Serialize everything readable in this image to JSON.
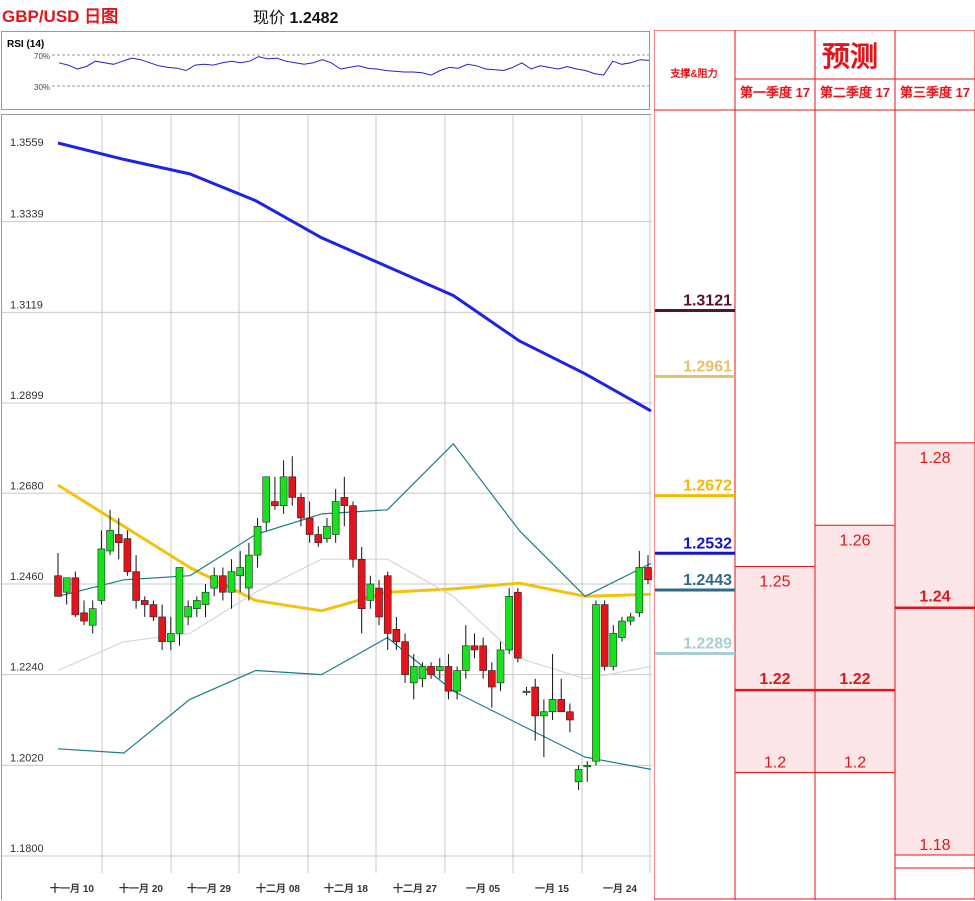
{
  "header": {
    "title": "GBP/USD 日图",
    "price_label": "现价",
    "price_value": "1.2482"
  },
  "rsi": {
    "label": "RSI (14)",
    "levels": [
      "70%",
      "30%"
    ],
    "upper": 70,
    "lower": 30,
    "values": [
      60,
      57,
      52,
      55,
      62,
      60,
      58,
      62,
      66,
      64,
      60,
      56,
      54,
      53,
      50,
      57,
      58,
      57,
      60,
      62,
      60,
      62,
      68,
      65,
      66,
      62,
      60,
      58,
      60,
      64,
      60,
      52,
      54,
      56,
      53,
      52,
      50,
      49,
      48,
      48,
      47,
      44,
      50,
      54,
      53,
      58,
      56,
      52,
      51,
      50,
      54,
      60,
      52,
      56,
      54,
      52,
      55,
      52,
      50,
      46,
      44,
      62,
      58,
      60,
      64,
      63
    ]
  },
  "chart_data": {
    "type": "candlestick",
    "title": "GBP/USD 日图",
    "current_price": 1.2482,
    "ylim": [
      1.18,
      1.3559
    ],
    "y_ticks": [
      "1.3559",
      "1.3339",
      "1.3119",
      "1.2899",
      "1.2680",
      "1.2460",
      "1.2240",
      "1.2020",
      "1.1800"
    ],
    "x_ticks": [
      "十一月 10",
      "十一月 20",
      "十一月 29",
      "十二月 08",
      "十二月 18",
      "十二月 27",
      "一月 05",
      "一月 15",
      "一月 24"
    ],
    "candles": [
      [
        1.248,
        1.2535,
        1.243,
        1.243
      ],
      [
        1.244,
        1.2475,
        1.241,
        1.2475
      ],
      [
        1.2475,
        1.249,
        1.238,
        1.2385
      ],
      [
        1.239,
        1.242,
        1.236,
        1.237
      ],
      [
        1.236,
        1.242,
        1.234,
        1.24
      ],
      [
        1.242,
        1.259,
        1.241,
        1.2545
      ],
      [
        1.254,
        1.264,
        1.253,
        1.259
      ],
      [
        1.258,
        1.262,
        1.252,
        1.256
      ],
      [
        1.257,
        1.259,
        1.248,
        1.249
      ],
      [
        1.249,
        1.253,
        1.24,
        1.242
      ],
      [
        1.242,
        1.243,
        1.238,
        1.241
      ],
      [
        1.241,
        1.242,
        1.237,
        1.238
      ],
      [
        1.238,
        1.241,
        1.23,
        1.232
      ],
      [
        1.232,
        1.238,
        1.23,
        1.234
      ],
      [
        1.234,
        1.25,
        1.231,
        1.25
      ],
      [
        1.238,
        1.242,
        1.236,
        1.2405
      ],
      [
        1.24,
        1.243,
        1.238,
        1.242
      ],
      [
        1.241,
        1.246,
        1.238,
        1.244
      ],
      [
        1.245,
        1.25,
        1.243,
        1.248
      ],
      [
        1.248,
        1.25,
        1.242,
        1.244
      ],
      [
        1.244,
        1.252,
        1.24,
        1.249
      ],
      [
        1.248,
        1.254,
        1.244,
        1.25
      ],
      [
        1.245,
        1.256,
        1.242,
        1.253
      ],
      [
        1.253,
        1.262,
        1.25,
        1.26
      ],
      [
        1.261,
        1.272,
        1.259,
        1.272
      ],
      [
        1.266,
        1.272,
        1.264,
        1.265
      ],
      [
        1.265,
        1.276,
        1.263,
        1.272
      ],
      [
        1.272,
        1.277,
        1.265,
        1.267
      ],
      [
        1.267,
        1.268,
        1.26,
        1.262
      ],
      [
        1.262,
        1.266,
        1.256,
        1.258
      ],
      [
        1.258,
        1.26,
        1.255,
        1.256
      ],
      [
        1.257,
        1.262,
        1.256,
        1.26
      ],
      [
        1.258,
        1.269,
        1.256,
        1.266
      ],
      [
        1.267,
        1.272,
        1.26,
        1.265
      ],
      [
        1.265,
        1.266,
        1.25,
        1.252
      ],
      [
        1.252,
        1.255,
        1.234,
        1.24
      ],
      [
        1.242,
        1.248,
        1.24,
        1.246
      ],
      [
        1.245,
        1.247,
        1.236,
        1.238
      ],
      [
        1.248,
        1.249,
        1.23,
        1.234
      ],
      [
        1.235,
        1.238,
        1.23,
        1.232
      ],
      [
        1.232,
        1.234,
        1.222,
        1.224
      ],
      [
        1.222,
        1.229,
        1.218,
        1.226
      ],
      [
        1.223,
        1.227,
        1.221,
        1.226
      ],
      [
        1.226,
        1.227,
        1.223,
        1.224
      ],
      [
        1.225,
        1.228,
        1.223,
        1.226
      ],
      [
        1.226,
        1.229,
        1.218,
        1.22
      ],
      [
        1.22,
        1.226,
        1.218,
        1.225
      ],
      [
        1.225,
        1.236,
        1.223,
        1.231
      ],
      [
        1.231,
        1.234,
        1.228,
        1.23
      ],
      [
        1.231,
        1.233,
        1.223,
        1.225
      ],
      [
        1.225,
        1.227,
        1.216,
        1.221
      ],
      [
        1.222,
        1.232,
        1.22,
        1.23
      ],
      [
        1.23,
        1.245,
        1.229,
        1.243
      ],
      [
        1.244,
        1.245,
        1.227,
        1.228
      ],
      [
        1.22,
        1.221,
        1.219,
        1.22
      ],
      [
        1.221,
        1.223,
        1.208,
        1.214
      ],
      [
        1.214,
        1.218,
        1.204,
        1.215
      ],
      [
        1.215,
        1.229,
        1.213,
        1.218
      ],
      [
        1.218,
        1.223,
        1.215,
        1.215
      ],
      [
        1.215,
        1.217,
        1.21,
        1.213
      ],
      [
        1.198,
        1.202,
        1.196,
        1.201
      ],
      [
        1.202,
        1.203,
        1.198,
        1.202
      ],
      [
        1.203,
        1.242,
        1.202,
        1.241
      ],
      [
        1.241,
        1.242,
        1.225,
        1.226
      ],
      [
        1.226,
        1.236,
        1.225,
        1.234
      ],
      [
        1.233,
        1.238,
        1.232,
        1.237
      ],
      [
        1.237,
        1.239,
        1.236,
        1.238
      ],
      [
        1.239,
        1.254,
        1.238,
        1.25
      ],
      [
        1.25,
        1.253,
        1.246,
        1.247
      ]
    ],
    "series": [
      {
        "name": "blue_ma",
        "color": "#1e22e6",
        "values": [
          1.353,
          1.349,
          1.3455,
          1.339,
          1.33,
          1.323,
          1.316,
          1.305,
          1.297,
          1.288
        ]
      },
      {
        "name": "yellow_ma",
        "color": "#f3c20d",
        "values": [
          1.27,
          1.26,
          1.25,
          1.242,
          1.2395,
          1.244,
          1.2448,
          1.2462,
          1.243,
          1.2435
        ]
      },
      {
        "name": "bb_upper",
        "color": "#1b7d8a",
        "values": [
          1.243,
          1.247,
          1.248,
          1.258,
          1.263,
          1.264,
          1.28,
          1.259,
          1.243,
          1.251
        ]
      },
      {
        "name": "bb_middle",
        "color": "#d6d6d6",
        "values": [
          1.225,
          1.232,
          1.234,
          1.244,
          1.252,
          1.252,
          1.243,
          1.228,
          1.223,
          1.226
        ]
      },
      {
        "name": "bb_lower",
        "color": "#1b7d8a",
        "values": [
          1.206,
          1.205,
          1.218,
          1.225,
          1.224,
          1.233,
          1.22,
          1.212,
          1.204,
          1.201
        ]
      }
    ]
  },
  "levels": {
    "header": "支撑&阻力",
    "items": [
      {
        "label": "1.3121",
        "value": 1.3121,
        "color": "#5a1030"
      },
      {
        "label": "1.2961",
        "value": 1.2961,
        "color": "#e7c06a"
      },
      {
        "label": "1.2672",
        "value": 1.2672,
        "color": "#f7b900"
      },
      {
        "label": "1.2532",
        "value": 1.2532,
        "color": "#1616c8"
      },
      {
        "label": "1.2443",
        "value": 1.2443,
        "color": "#2c6a85"
      },
      {
        "label": "1.2289",
        "value": 1.2289,
        "color": "#a8cdd3"
      }
    ]
  },
  "forecast": {
    "title": "预测",
    "columns": [
      {
        "header": "第一季度 17",
        "high": "1.25",
        "mid": "1.22",
        "low": "1.2"
      },
      {
        "header": "第二季度 17",
        "high": "1.26",
        "mid": "1.22",
        "low": "1.2"
      },
      {
        "header": "第三季度 17",
        "high": "1.28",
        "mid": "1.24",
        "low": "1.18"
      }
    ]
  }
}
